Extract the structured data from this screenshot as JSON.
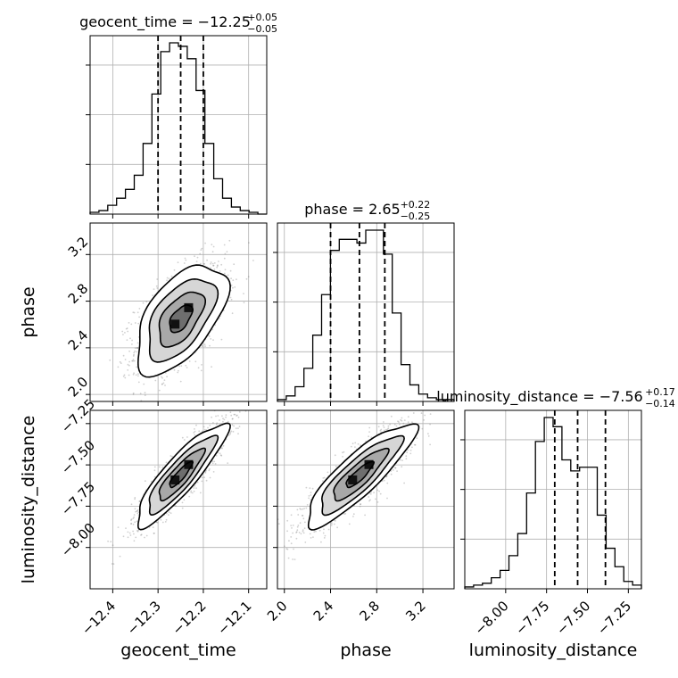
{
  "chart_data": {
    "type": "corner",
    "parameters": [
      {
        "name": "geocent_time",
        "range": [
          -12.45,
          -12.06
        ],
        "ticks": [
          -12.4,
          -12.3,
          -12.2,
          -12.1
        ],
        "tick_labels": [
          "−12.4",
          "−12.3",
          "−12.2",
          "−12.1"
        ],
        "median": -12.25,
        "plus": 0.05,
        "minus": 0.05,
        "title_main": "geocent_time = −12.25",
        "title_sup": "+0.05",
        "title_sub": "−0.05",
        "quantiles": [
          -12.3,
          -12.25,
          -12.2
        ],
        "hist": [
          1,
          2,
          5,
          9,
          14,
          22,
          40,
          68,
          92,
          97,
          95,
          88,
          70,
          40,
          20,
          9,
          4,
          2,
          1,
          0
        ]
      },
      {
        "name": "phase",
        "range": [
          1.94,
          3.47
        ],
        "ticks": [
          2.0,
          2.4,
          2.8,
          3.2
        ],
        "tick_labels": [
          "2.0",
          "2.4",
          "2.8",
          "3.2"
        ],
        "median": 2.65,
        "plus": 0.22,
        "minus": 0.25,
        "title_main": "phase = 2.65",
        "title_sup": "+0.22",
        "title_sub": "−0.25",
        "quantiles": [
          2.4,
          2.65,
          2.87
        ],
        "hist": [
          1,
          3,
          8,
          18,
          36,
          58,
          82,
          88,
          88,
          86,
          93,
          93,
          80,
          48,
          20,
          9,
          4,
          2,
          1,
          1
        ]
      },
      {
        "name": "luminosity_distance",
        "range": [
          -8.25,
          -7.17
        ],
        "ticks": [
          -8.0,
          -7.75,
          -7.5,
          -7.25
        ],
        "tick_labels": [
          "−8.00",
          "−7.75",
          "−7.50",
          "−7.25"
        ],
        "median": -7.56,
        "plus": 0.17,
        "minus": 0.14,
        "title_main": "luminosity_distance = −7.56",
        "title_sup": "+0.17",
        "title_sub": "−0.14",
        "quantiles": [
          -7.7,
          -7.56,
          -7.39
        ],
        "hist": [
          1,
          2,
          3,
          6,
          10,
          18,
          30,
          52,
          80,
          93,
          88,
          70,
          64,
          66,
          66,
          40,
          22,
          12,
          4,
          2
        ]
      }
    ],
    "pairs": [
      {
        "x": "geocent_time",
        "y": "phase",
        "mean": [
          -12.25,
          2.65
        ],
        "sd": [
          0.05,
          0.235
        ],
        "corr": 0.55,
        "y_tick_labels": [
          "2.0",
          "2.4",
          "2.8",
          "3.2"
        ]
      },
      {
        "x": "geocent_time",
        "y": "luminosity_distance",
        "mean": [
          -12.25,
          -7.56
        ],
        "sd": [
          0.05,
          0.155
        ],
        "corr": 0.88,
        "y_tick_labels": [
          "−8.00",
          "−7.75",
          "−7.50",
          "−7.25"
        ]
      },
      {
        "x": "phase",
        "y": "luminosity_distance",
        "mean": [
          2.65,
          -7.56
        ],
        "sd": [
          0.235,
          0.155
        ],
        "corr": 0.86
      }
    ],
    "grid": true,
    "style": {
      "hist_color": "#000000",
      "point_color": "#808080",
      "contour_color": "#000000"
    }
  }
}
